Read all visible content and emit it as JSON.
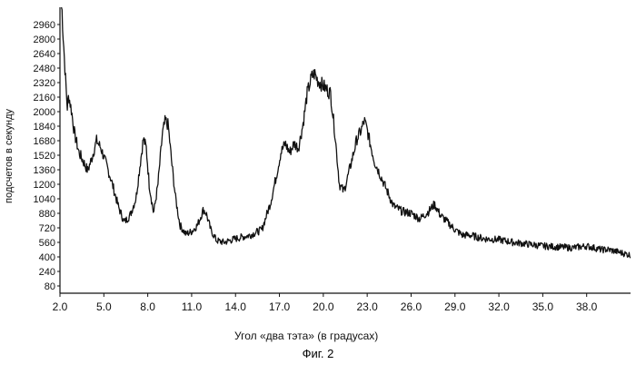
{
  "chart_data": {
    "type": "line",
    "title": "",
    "xlabel": "Угол «два тэта» (в градусах)",
    "ylabel": "подсчетов в секунду",
    "xlim": [
      2.0,
      41.0
    ],
    "ylim": [
      0,
      3150
    ],
    "x_ticks": [
      "2.0",
      "5.0",
      "8.0",
      "11.0",
      "14.0",
      "17.0",
      "20.0",
      "23.0",
      "26.0",
      "29.0",
      "32.0",
      "35.0",
      "38.0"
    ],
    "y_ticks": [
      "80",
      "240",
      "400",
      "560",
      "720",
      "880",
      "1040",
      "1200",
      "1360",
      "1520",
      "1680",
      "1840",
      "2000",
      "2160",
      "2320",
      "2480",
      "2640",
      "2800",
      "2960"
    ],
    "grid": false,
    "series": [
      {
        "x": [
          2.1,
          2.2,
          2.3,
          2.4,
          2.5,
          2.6,
          2.8,
          3.0,
          3.3,
          3.6,
          3.9,
          4.2,
          4.5,
          4.8,
          5.1,
          5.5,
          6.0,
          6.4,
          6.8,
          7.2,
          7.5,
          7.7,
          7.9,
          8.1,
          8.4,
          8.7,
          9.0,
          9.2,
          9.4,
          9.6,
          9.9,
          10.2,
          10.6,
          11.0,
          11.4,
          11.8,
          12.0,
          12.3,
          12.7,
          13.2,
          14.0,
          15.0,
          15.8,
          16.4,
          16.8,
          17.1,
          17.4,
          17.7,
          18.0,
          18.3,
          18.6,
          18.9,
          19.2,
          19.4,
          19.6,
          19.9,
          20.2,
          20.5,
          20.8,
          21.1,
          21.4,
          21.7,
          22.0,
          22.3,
          22.6,
          22.8,
          23.0,
          23.2,
          23.5,
          23.9,
          24.3,
          24.8,
          25.4,
          26.0,
          26.6,
          27.2,
          27.6,
          28.0,
          28.5,
          29.0,
          29.5,
          30.0,
          31.0,
          32.0,
          33.0,
          34.0,
          35.0,
          36.0,
          37.0,
          38.0,
          38.5,
          39.0,
          39.5,
          40.0,
          40.5,
          41.0
        ],
        "y": [
          3250,
          2900,
          2600,
          2300,
          2050,
          2180,
          2000,
          1750,
          1550,
          1450,
          1350,
          1500,
          1680,
          1600,
          1450,
          1250,
          950,
          780,
          860,
          1050,
          1450,
          1700,
          1600,
          1200,
          880,
          1200,
          1750,
          1900,
          1850,
          1500,
          1050,
          750,
          650,
          680,
          750,
          920,
          880,
          700,
          580,
          560,
          600,
          640,
          700,
          1000,
          1300,
          1550,
          1650,
          1550,
          1650,
          1600,
          1850,
          2200,
          2380,
          2420,
          2350,
          2300,
          2250,
          2200,
          1750,
          1200,
          1120,
          1300,
          1500,
          1700,
          1800,
          1900,
          1800,
          1650,
          1450,
          1300,
          1150,
          960,
          900,
          880,
          820,
          900,
          980,
          860,
          780,
          700,
          640,
          640,
          600,
          590,
          560,
          540,
          520,
          510,
          500,
          520,
          500,
          480,
          480,
          460,
          440,
          420
        ]
      }
    ]
  },
  "caption": "Фиг. 2"
}
